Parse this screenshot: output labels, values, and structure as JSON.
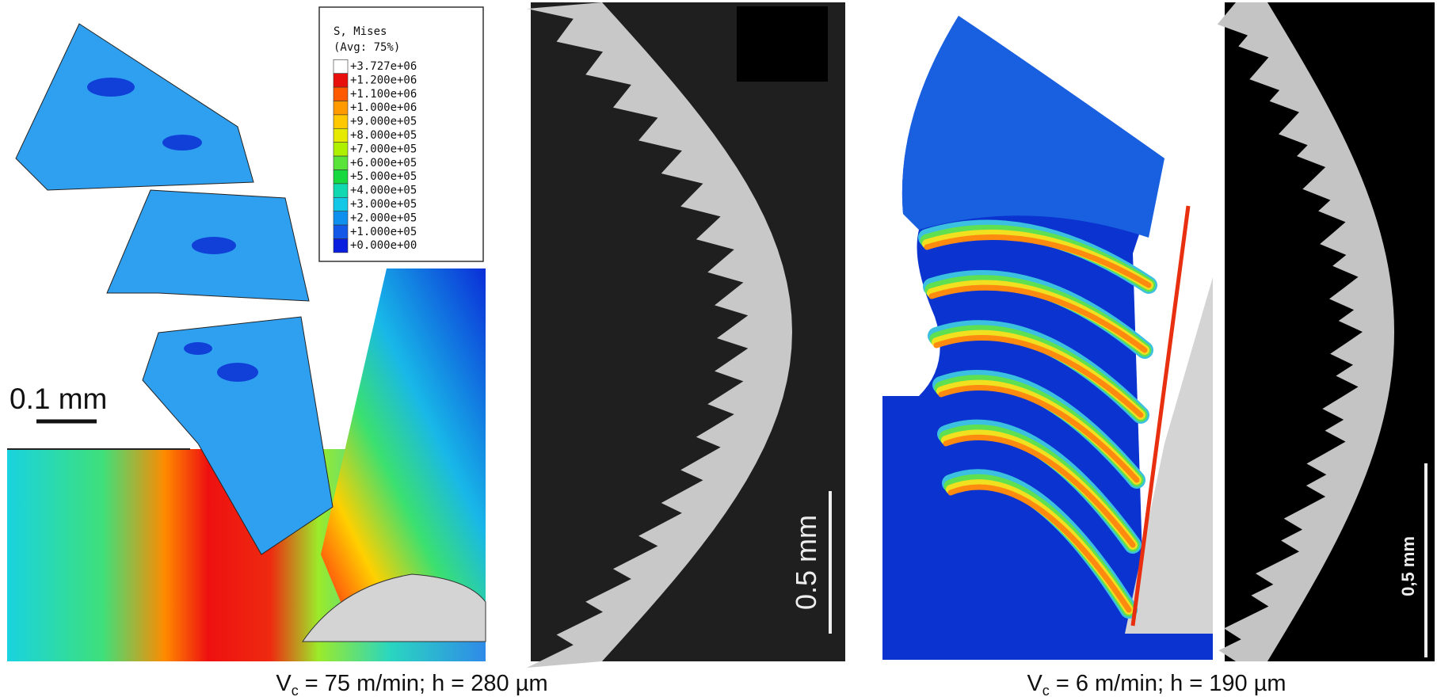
{
  "legend": {
    "title": "S, Mises",
    "subtitle": "(Avg: 75%)",
    "entries": [
      "+3.727e+06",
      "+1.200e+06",
      "+1.100e+06",
      "+1.000e+06",
      "+9.000e+05",
      "+8.000e+05",
      "+7.000e+05",
      "+6.000e+05",
      "+5.000e+05",
      "+4.000e+05",
      "+3.000e+05",
      "+2.000e+05",
      "+1.000e+05",
      "+0.000e+00"
    ]
  },
  "scale_bars": [
    "0.1 mm",
    "0.5 mm",
    "0,5 mm"
  ],
  "captions": [
    {
      "symbol": "V",
      "subscript": "c",
      "text": " = 75 m/min; h = 280 µm"
    },
    {
      "symbol": "V",
      "subscript": "c",
      "text": " = 6 m/min; h = 190 µm"
    }
  ]
}
